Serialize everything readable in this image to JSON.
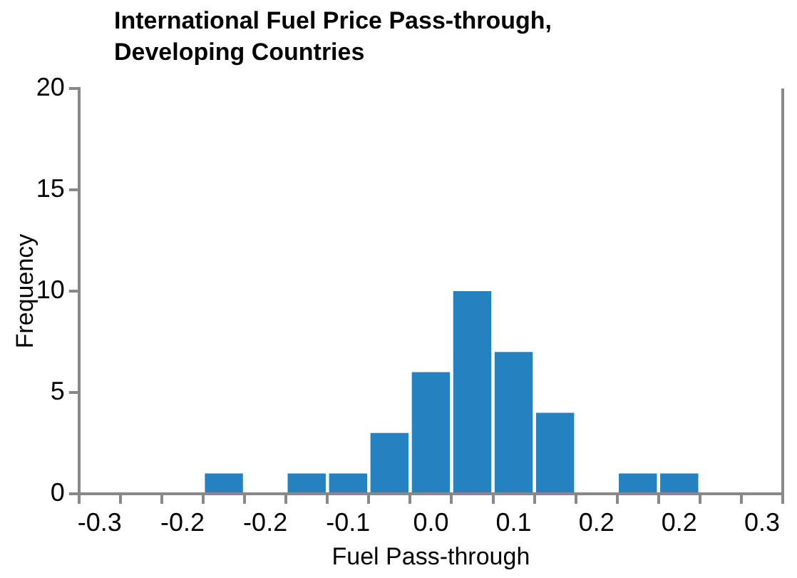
{
  "chart_data": {
    "type": "bar",
    "title": "International Fuel Price Pass-through, Developing Countries",
    "xlabel": "Fuel Pass-through",
    "ylabel": "Frequency",
    "categories": [
      "-0.3",
      null,
      "-0.2",
      null,
      "-0.2",
      null,
      "-0.1",
      null,
      "0.0",
      null,
      "0.1",
      null,
      "0.2",
      null,
      "0.2",
      null,
      "0.3"
    ],
    "values": [
      0,
      0,
      0,
      1,
      0,
      1,
      1,
      3,
      6,
      10,
      7,
      4,
      0,
      1,
      1,
      0,
      0
    ],
    "color": "#2681c0",
    "ylim": [
      0,
      20
    ],
    "yticks": [
      0,
      5,
      10,
      15,
      20
    ],
    "grid": false,
    "legend": false
  }
}
